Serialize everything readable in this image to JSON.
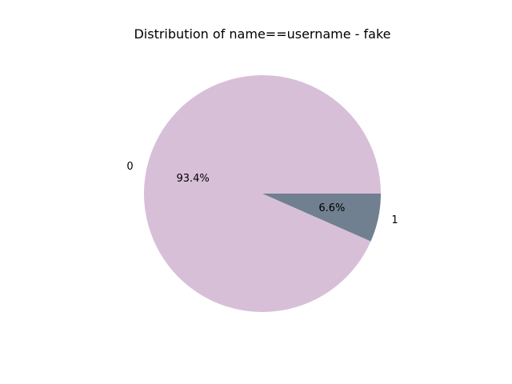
{
  "chart_data": {
    "type": "pie",
    "title": "Distribution of name==username - fake",
    "labels": [
      "0",
      "1"
    ],
    "values": [
      93.4,
      6.6
    ],
    "percent_labels": [
      "93.4%",
      "6.6%"
    ],
    "colors": [
      "#d8bfd8",
      "#708090"
    ],
    "start_angle_deg": 0,
    "direction": "counterclockwise",
    "legend": "none"
  }
}
